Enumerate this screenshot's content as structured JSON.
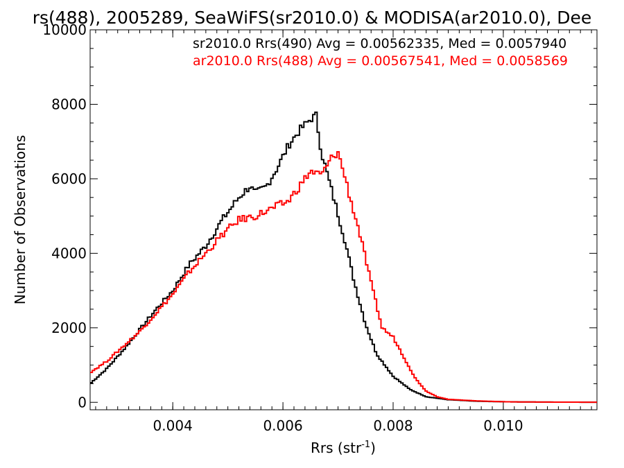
{
  "chart_data": {
    "type": "line",
    "title": "rs(488), 2005289, SeaWiFS(sr2010.0) & MODISA(ar2010.0), Dee",
    "xlabel": "Rrs (str",
    "xlabel_sup": "-1",
    "xlabel_close": ")",
    "ylabel": "Number of Observations",
    "xlim": [
      0.0025,
      0.0117
    ],
    "ylim": [
      -200,
      10000
    ],
    "x_ticks": [
      "0.004",
      "0.006",
      "0.008",
      "0.010"
    ],
    "y_ticks": [
      "0",
      "2000",
      "4000",
      "6000",
      "8000",
      "10000"
    ],
    "grid": false,
    "legend_position": "top-right",
    "series": [
      {
        "name": "sr2010.0 Rrs(490) Avg = 0.00562335, Med = 0.0057940",
        "color": "#000000",
        "points": [
          [
            0.0025,
            500
          ],
          [
            0.0028,
            900
          ],
          [
            0.0031,
            1400
          ],
          [
            0.0034,
            1950
          ],
          [
            0.0037,
            2500
          ],
          [
            0.004,
            3000
          ],
          [
            0.0043,
            3700
          ],
          [
            0.0046,
            4200
          ],
          [
            0.0049,
            4900
          ],
          [
            0.0052,
            5500
          ],
          [
            0.0054,
            5800
          ],
          [
            0.0055,
            5600
          ],
          [
            0.0057,
            5800
          ],
          [
            0.0059,
            6300
          ],
          [
            0.0061,
            6900
          ],
          [
            0.0063,
            7300
          ],
          [
            0.0065,
            7600
          ],
          [
            0.0066,
            7700
          ],
          [
            0.0067,
            6700
          ],
          [
            0.0069,
            5600
          ],
          [
            0.0071,
            4500
          ],
          [
            0.0073,
            3200
          ],
          [
            0.0075,
            2100
          ],
          [
            0.0077,
            1300
          ],
          [
            0.008,
            700
          ],
          [
            0.0083,
            350
          ],
          [
            0.0086,
            150
          ],
          [
            0.009,
            70
          ],
          [
            0.0095,
            30
          ],
          [
            0.01,
            15
          ],
          [
            0.0105,
            8
          ],
          [
            0.011,
            5
          ],
          [
            0.0117,
            3
          ]
        ]
      },
      {
        "name": "ar2010.0 Rrs(488) Avg = 0.00567541, Med = 0.0058569",
        "color": "#ff0000",
        "points": [
          [
            0.0025,
            800
          ],
          [
            0.0028,
            1100
          ],
          [
            0.0031,
            1500
          ],
          [
            0.0034,
            1900
          ],
          [
            0.0037,
            2400
          ],
          [
            0.004,
            2900
          ],
          [
            0.0043,
            3500
          ],
          [
            0.0046,
            4000
          ],
          [
            0.0049,
            4500
          ],
          [
            0.0052,
            4900
          ],
          [
            0.0055,
            5000
          ],
          [
            0.0058,
            5200
          ],
          [
            0.0061,
            5400
          ],
          [
            0.0063,
            5800
          ],
          [
            0.0065,
            6200
          ],
          [
            0.0067,
            6100
          ],
          [
            0.0069,
            6600
          ],
          [
            0.007,
            6700
          ],
          [
            0.0071,
            6200
          ],
          [
            0.0072,
            5600
          ],
          [
            0.0074,
            4500
          ],
          [
            0.0076,
            3200
          ],
          [
            0.0078,
            2000
          ],
          [
            0.008,
            1750
          ],
          [
            0.0082,
            1200
          ],
          [
            0.0084,
            650
          ],
          [
            0.0086,
            300
          ],
          [
            0.0088,
            150
          ],
          [
            0.009,
            80
          ],
          [
            0.0095,
            40
          ],
          [
            0.01,
            15
          ],
          [
            0.0105,
            8
          ],
          [
            0.011,
            5
          ],
          [
            0.0117,
            3
          ]
        ]
      }
    ]
  }
}
